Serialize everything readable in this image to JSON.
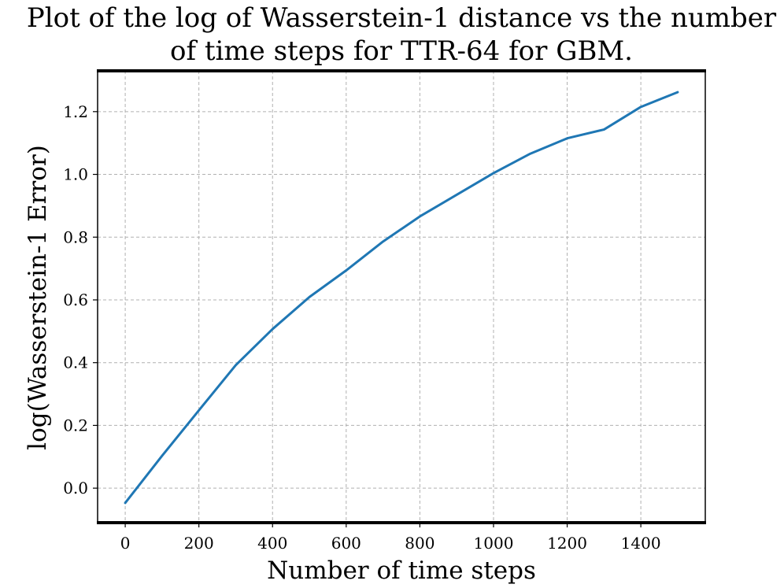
{
  "chart_data": {
    "type": "line",
    "title_lines": [
      "Plot of the log of Wasserstein-1 distance vs the number",
      "of time steps for TTR-64 for GBM."
    ],
    "xlabel": "Number of time steps",
    "ylabel": "log(Wasserstein-1 Error)",
    "xlim": [
      -75,
      1575
    ],
    "ylim": [
      -0.11,
      1.33
    ],
    "x_ticks": [
      0,
      200,
      400,
      600,
      800,
      1000,
      1200,
      1400
    ],
    "x_tick_labels": [
      "0",
      "200",
      "400",
      "600",
      "800",
      "1000",
      "1200",
      "1400"
    ],
    "y_ticks": [
      0.0,
      0.2,
      0.4,
      0.6,
      0.8,
      1.0,
      1.2
    ],
    "y_tick_labels": [
      "0.0",
      "0.2",
      "0.4",
      "0.6",
      "0.8",
      "1.0",
      "1.2"
    ],
    "grid": true,
    "line_color": "#1f77b4",
    "series": [
      {
        "x": [
          0,
          100,
          200,
          300,
          400,
          500,
          600,
          700,
          800,
          900,
          1000,
          1100,
          1200,
          1300,
          1400,
          1500
        ],
        "values": [
          -0.047,
          0.103,
          0.248,
          0.392,
          0.507,
          0.609,
          0.694,
          0.786,
          0.866,
          0.935,
          1.004,
          1.066,
          1.115,
          1.143,
          1.215,
          1.262
        ]
      }
    ]
  }
}
